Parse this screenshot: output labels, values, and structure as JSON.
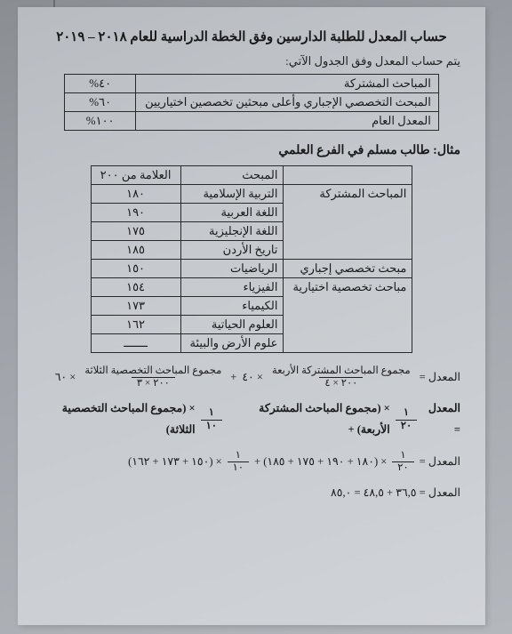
{
  "title": "حساب المعدل للطلبة الدارسين وفق الخطة الدراسية للعام ٢٠١٨ – ٢٠١٩",
  "intro": "يتم حساب المعدل وفق الجدول الآتي:",
  "table1": {
    "rows": [
      {
        "label": "المباحث المشتركة",
        "value": "٤٠%"
      },
      {
        "label": "المبحث التخصصي الإجباري وأعلى مبحثين تخصصين اختياريين",
        "value": "٦٠%"
      },
      {
        "label": "المعدل العام",
        "value": "١٠٠%"
      }
    ]
  },
  "example_title": "مثال: طالب مسلم في الفرع العلمي",
  "table2": {
    "header": {
      "subject": "المبحث",
      "mark": "العلامة من ٢٠٠"
    },
    "groups": [
      {
        "cat": "المباحث المشتركة",
        "rows": [
          {
            "sub": "التربية الإسلامية",
            "mark": "١٨٠"
          },
          {
            "sub": "اللغة العربية",
            "mark": "١٩٠"
          },
          {
            "sub": "اللغة الإنجليزية",
            "mark": "١٧٥"
          },
          {
            "sub": "تاريخ الأردن",
            "mark": "١٨٥"
          }
        ]
      },
      {
        "cat": "مبحث تخصصي إجباري",
        "rows": [
          {
            "sub": "الرياضيات",
            "mark": "١٥٠"
          }
        ]
      },
      {
        "cat": "مباحث تخصصية اختيارية",
        "rows": [
          {
            "sub": "الفيزياء",
            "mark": "١٥٤"
          },
          {
            "sub": "الكيمياء",
            "mark": "١٧٣"
          },
          {
            "sub": "العلوم الحياتية",
            "mark": "١٦٢"
          },
          {
            "sub": "علوم الأرض والبيئة",
            "mark": "ـــــــ"
          }
        ]
      }
    ]
  },
  "formulas": {
    "f1": {
      "lhs": "المعدل =",
      "frac1_num": "مجموع المباحث المشتركة الأربعة",
      "frac1_den": "٢٠٠ × ٤",
      "mul1": "× ٤٠",
      "plus": "+",
      "frac2_num": "مجموع المباحث التخصصية الثلاثة",
      "frac2_den": "٢٠٠ × ٣",
      "mul2": "× ٦٠"
    },
    "f2": {
      "lhs": "المعدل =",
      "frac1_num": "١",
      "frac1_den": "٢٠",
      "mid1": "× (مجموع المباحث المشتركة الأربعة)  +",
      "frac2_num": "١",
      "frac2_den": "١٠",
      "mid2": "× (مجموع المباحث التخصصية الثلاثة)"
    },
    "f3": {
      "lhs": "المعدل =",
      "frac1_num": "١",
      "frac1_den": "٢٠",
      "part1": "× (١٨٠ + ١٩٠ + ١٧٥ + ١٨٥)  +",
      "frac2_num": "١",
      "frac2_den": "١٠",
      "part2": "× (١٥٠ + ١٧٣ + ١٦٢)"
    },
    "f4": "المعدل = ٣٦,٥ + ٤٨,٥ = ٨٥,٠"
  }
}
